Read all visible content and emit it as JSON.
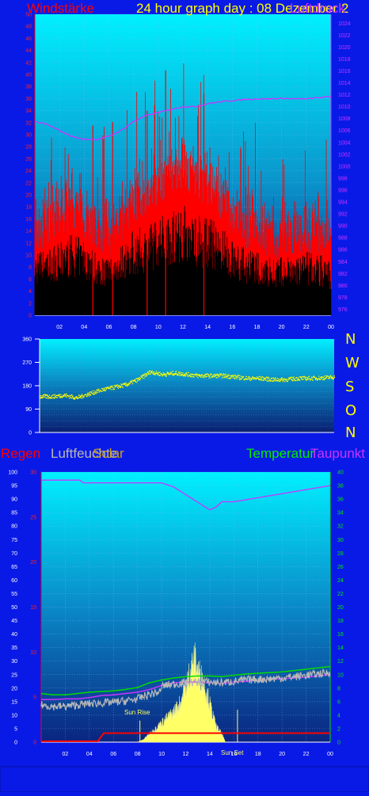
{
  "header": {
    "wind_title": "Windstärke",
    "graph_title": "24 hour graph day : 08 Dezember 2",
    "pressure_title": "Luftdruck"
  },
  "panel3_labels": {
    "rain": "Regen",
    "humidity": "Luftfeuchte",
    "solar": "Solar",
    "temperature": "Temperatur",
    "dewpoint": "Taupunkt",
    "sunrise": "Sun Rise",
    "sunset": "Sun Set"
  },
  "compass": [
    "N",
    "W",
    "S",
    "O",
    "N"
  ],
  "colors": {
    "background": "#0a1ae6",
    "wind": "#ff0000",
    "gust_base": "#000000",
    "pressure": "#cc33ff",
    "direction": "#ffff00",
    "temperature": "#00dd00",
    "dewpoint": "#cc33ff",
    "humidity": "#b8b8b8",
    "solar": "#ffff66",
    "rain": "#ff0000"
  },
  "chart_data": [
    {
      "type": "area",
      "title": "Windstärke",
      "x_ticks": [
        "02",
        "04",
        "06",
        "08",
        "10",
        "12",
        "14",
        "16",
        "18",
        "20",
        "22",
        "00"
      ],
      "y_left_ticks": [
        "0",
        "2",
        "4",
        "6",
        "8",
        "10",
        "12",
        "14",
        "16",
        "18",
        "20",
        "22",
        "24",
        "26",
        "28",
        "30",
        "32",
        "34",
        "36",
        "38",
        "40",
        "42",
        "44",
        "46",
        "48",
        "50"
      ],
      "y_left_range": [
        0,
        50
      ],
      "y_right_ticks": [
        "976",
        "978",
        "980",
        "982",
        "984",
        "986",
        "988",
        "990",
        "992",
        "994",
        "996",
        "998",
        "1000",
        "1002",
        "1004",
        "1006",
        "1008",
        "1010",
        "1012",
        "1014",
        "1016",
        "1018",
        "1020",
        "1022",
        "1024"
      ],
      "y_right_range": [
        975,
        1025.5
      ],
      "series": [
        {
          "name": "Windstärke",
          "x": [
            0,
            1,
            2,
            3,
            4,
            5,
            6,
            7,
            8,
            9,
            10,
            11,
            12,
            13,
            14,
            15,
            16,
            17,
            18,
            19,
            20,
            21,
            22,
            23,
            24
          ],
          "values": [
            14,
            15,
            16,
            18,
            17,
            14,
            13,
            16,
            19,
            20,
            22,
            24,
            25,
            23,
            22,
            20,
            17,
            15,
            14,
            13,
            13,
            13,
            14,
            14,
            12
          ]
        },
        {
          "name": "Luftdruck",
          "x": [
            0,
            1,
            2,
            3,
            4,
            5,
            6,
            7,
            8,
            9,
            10,
            11,
            12,
            13,
            14,
            15,
            16,
            17,
            18,
            19,
            20,
            21,
            22,
            23,
            24
          ],
          "values": [
            1007.5,
            1007,
            1006,
            1005,
            1004.5,
            1004.5,
            1005,
            1006,
            1007.5,
            1008.5,
            1009,
            1009.5,
            1010,
            1010,
            1010.5,
            1010.8,
            1011,
            1011.2,
            1011.3,
            1011.3,
            1011.4,
            1011.3,
            1011.3,
            1011.5,
            1011.7
          ]
        }
      ]
    },
    {
      "type": "scatter",
      "title": "",
      "x_ticks": [],
      "y_ticks": [
        "0",
        "90",
        "180",
        "270",
        "360"
      ],
      "y_range": [
        0,
        360
      ],
      "series": [
        {
          "name": "",
          "x": [
            0,
            1,
            2,
            3,
            4,
            5,
            6,
            7,
            8,
            9,
            10,
            11,
            12,
            13,
            14,
            15,
            16,
            17,
            18,
            19,
            20,
            21,
            22,
            23,
            24
          ],
          "values": [
            140,
            140,
            145,
            135,
            150,
            165,
            175,
            185,
            205,
            235,
            225,
            230,
            225,
            220,
            220,
            220,
            215,
            210,
            210,
            205,
            205,
            210,
            210,
            212,
            215
          ]
        }
      ]
    },
    {
      "type": "line",
      "title": "",
      "x_ticks": [
        "02",
        "04",
        "06",
        "08",
        "10",
        "12",
        "14",
        "16",
        "18",
        "20",
        "22",
        "00"
      ],
      "y_left_ticks": [
        "0",
        "5",
        "10",
        "15",
        "20",
        "25",
        "30",
        "35",
        "40",
        "45",
        "50",
        "55",
        "60",
        "65",
        "70",
        "75",
        "80",
        "85",
        "90",
        "95",
        "100"
      ],
      "y_left_range": [
        0,
        100
      ],
      "y_rain_ticks": [
        "0",
        "5",
        "10",
        "15",
        "20",
        "25",
        "30"
      ],
      "y_rain_range": [
        0,
        30
      ],
      "y_right_ticks": [
        "0",
        "2",
        "4",
        "6",
        "8",
        "10",
        "12",
        "14",
        "16",
        "18",
        "20",
        "22",
        "24",
        "26",
        "28",
        "30",
        "32",
        "34",
        "36",
        "38",
        "40"
      ],
      "y_right_range": [
        0,
        40
      ],
      "solar_range": [
        0,
        100
      ],
      "x_annotations": {
        "sun_rise_hour": 8.2,
        "sun_set_hour": 16.3
      },
      "series": [
        {
          "name": "Regen",
          "x": [
            0,
            4.7,
            5.2,
            8.2,
            8.5,
            16.2,
            16.4,
            24
          ],
          "values": [
            0.1,
            0.1,
            1.0,
            1.0,
            1.0,
            1.0,
            1.0,
            1.0
          ]
        },
        {
          "name": "Luftfeuchte",
          "x": [
            0,
            3.2,
            3.5,
            10,
            11,
            14,
            14.5,
            15,
            16,
            24
          ],
          "values": [
            97,
            97,
            96,
            96,
            94.5,
            86,
            87,
            89,
            89,
            95
          ]
        },
        {
          "name": "Solar",
          "x": [
            8,
            8.5,
            9,
            9.5,
            10,
            10.5,
            11,
            11.5,
            12,
            12.5,
            12.8,
            13,
            13.5,
            14,
            14.5,
            15,
            15.3
          ],
          "values": [
            0,
            1,
            3,
            5,
            7,
            9,
            11,
            14,
            20,
            28,
            30,
            26,
            22,
            14,
            6,
            3,
            0
          ]
        },
        {
          "name": "Temperatur",
          "x": [
            0,
            1,
            2,
            3,
            4,
            5,
            6,
            7,
            8,
            9,
            10,
            11,
            12,
            13,
            14,
            15,
            16,
            17,
            18,
            19,
            20,
            21,
            22,
            23,
            24
          ],
          "values": [
            7.2,
            7.0,
            7.0,
            7.2,
            7.4,
            7.5,
            7.6,
            7.8,
            8.1,
            8.8,
            9.2,
            9.5,
            9.7,
            9.8,
            9.8,
            9.7,
            9.9,
            10.1,
            10.2,
            10.3,
            10.4,
            10.6,
            10.8,
            11.0,
            11.2
          ]
        },
        {
          "name": "Taupunkt",
          "x": [
            0,
            1,
            2,
            3,
            4,
            5,
            6,
            7,
            8,
            9,
            10,
            11,
            12,
            13,
            14,
            15,
            16,
            17,
            18,
            19,
            20,
            21,
            22,
            23,
            24
          ],
          "values": [
            6.3,
            6.3,
            6.4,
            6.4,
            6.6,
            6.9,
            7.0,
            7.2,
            7.4,
            7.8,
            8.4,
            8.8,
            8.9,
            8.9,
            8.8,
            8.7,
            8.9,
            9.0,
            9.2,
            9.3,
            9.4,
            9.5,
            9.6,
            9.8,
            10.0
          ]
        }
      ]
    }
  ]
}
